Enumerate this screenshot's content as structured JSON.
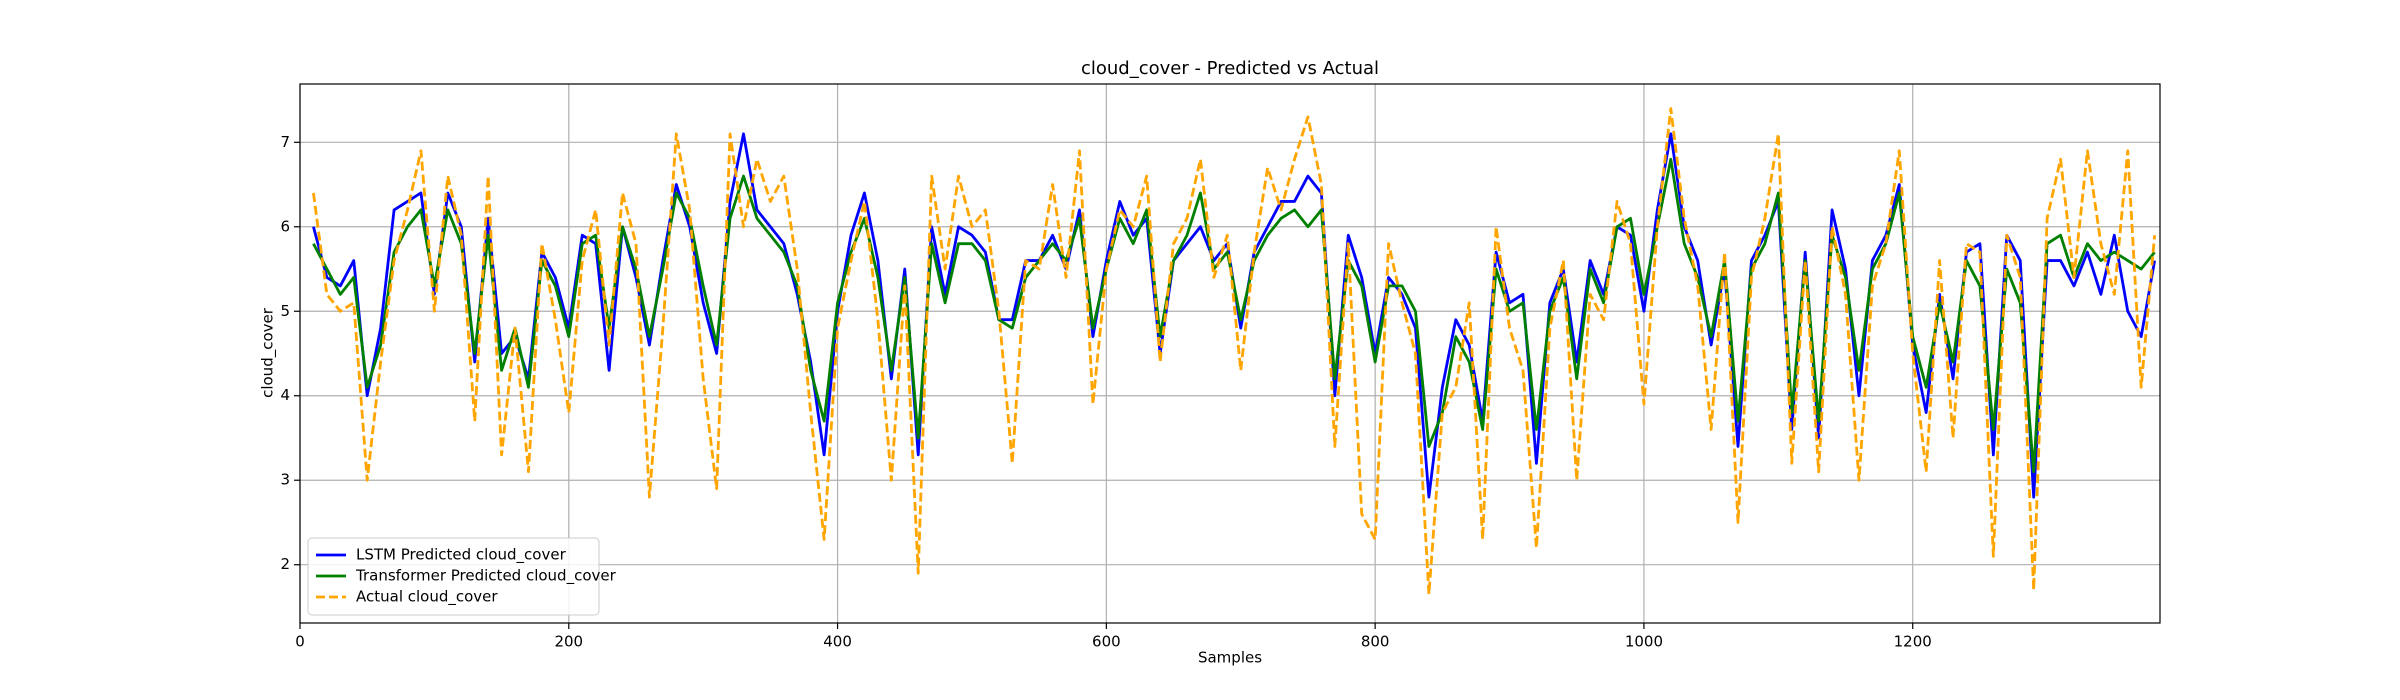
{
  "chart_data": {
    "type": "line",
    "title": "cloud_cover - Predicted vs Actual",
    "xlabel": "Samples",
    "ylabel": "cloud_cover",
    "xlim": [
      0,
      1384
    ],
    "ylim": [
      1.31,
      7.69
    ],
    "xticks": [
      0,
      200,
      400,
      600,
      800,
      1000,
      1200
    ],
    "yticks": [
      2,
      3,
      4,
      5,
      6,
      7
    ],
    "grid": true,
    "legend": "lower left",
    "x": [
      10,
      20,
      30,
      40,
      50,
      60,
      70,
      80,
      90,
      100,
      110,
      120,
      130,
      140,
      150,
      160,
      170,
      180,
      190,
      200,
      210,
      220,
      230,
      240,
      250,
      260,
      270,
      280,
      290,
      300,
      310,
      320,
      330,
      340,
      350,
      360,
      370,
      380,
      390,
      400,
      410,
      420,
      430,
      440,
      450,
      460,
      470,
      480,
      490,
      500,
      510,
      520,
      530,
      540,
      550,
      560,
      570,
      580,
      590,
      600,
      610,
      620,
      630,
      640,
      650,
      660,
      670,
      680,
      690,
      700,
      710,
      720,
      730,
      740,
      750,
      760,
      770,
      780,
      790,
      800,
      810,
      820,
      830,
      840,
      850,
      860,
      870,
      880,
      890,
      900,
      910,
      920,
      930,
      940,
      950,
      960,
      970,
      980,
      990,
      1000,
      1010,
      1020,
      1030,
      1040,
      1050,
      1060,
      1070,
      1080,
      1090,
      1100,
      1110,
      1120,
      1130,
      1140,
      1150,
      1160,
      1170,
      1180,
      1190,
      1200,
      1210,
      1220,
      1230,
      1240,
      1250,
      1260,
      1270,
      1280,
      1290,
      1300,
      1310,
      1320,
      1330,
      1340,
      1350,
      1360,
      1370,
      1380
    ],
    "series": [
      {
        "name": "LSTM Predicted cloud_cover",
        "color": "#0000ff",
        "linestyle": "solid",
        "values": [
          6.0,
          5.4,
          5.3,
          5.6,
          4.0,
          4.8,
          6.2,
          6.3,
          6.4,
          5.2,
          6.4,
          6.0,
          4.4,
          6.1,
          4.5,
          4.7,
          4.2,
          5.7,
          5.4,
          4.8,
          5.9,
          5.8,
          4.3,
          6.0,
          5.4,
          4.6,
          5.6,
          6.5,
          6.0,
          5.1,
          4.5,
          6.3,
          7.1,
          6.2,
          6.0,
          5.8,
          5.2,
          4.4,
          3.3,
          5.0,
          5.9,
          6.4,
          5.6,
          4.2,
          5.5,
          3.3,
          6.0,
          5.2,
          6.0,
          5.9,
          5.7,
          4.9,
          4.9,
          5.6,
          5.6,
          5.9,
          5.5,
          6.2,
          4.7,
          5.6,
          6.3,
          5.9,
          6.1,
          4.5,
          5.6,
          5.8,
          6.0,
          5.6,
          5.8,
          4.8,
          5.7,
          6.0,
          6.3,
          6.3,
          6.6,
          6.4,
          4.0,
          5.9,
          5.4,
          4.5,
          5.4,
          5.2,
          4.8,
          2.8,
          4.1,
          4.9,
          4.6,
          3.7,
          5.7,
          5.1,
          5.2,
          3.2,
          5.1,
          5.5,
          4.4,
          5.6,
          5.2,
          6.0,
          5.9,
          5.0,
          6.2,
          7.1,
          6.0,
          5.6,
          4.6,
          5.5,
          3.4,
          5.6,
          5.9,
          6.3,
          3.6,
          5.7,
          3.5,
          6.2,
          5.5,
          4.0,
          5.6,
          5.9,
          6.5,
          4.6,
          3.8,
          5.2,
          4.2,
          5.7,
          5.8,
          3.3,
          5.9,
          5.6,
          2.8,
          5.6,
          5.6,
          5.3,
          5.7,
          5.2,
          5.9,
          5.0,
          4.7,
          5.6
        ]
      },
      {
        "name": "Transformer Predicted cloud_cover",
        "color": "#008000",
        "linestyle": "solid",
        "values": [
          5.8,
          5.5,
          5.2,
          5.4,
          4.1,
          4.6,
          5.7,
          6.0,
          6.2,
          5.3,
          6.2,
          5.8,
          4.5,
          5.9,
          4.3,
          4.8,
          4.1,
          5.6,
          5.3,
          4.7,
          5.8,
          5.9,
          4.8,
          6.0,
          5.5,
          4.7,
          5.5,
          6.4,
          6.1,
          5.3,
          4.6,
          6.1,
          6.6,
          6.1,
          5.9,
          5.7,
          5.3,
          4.3,
          3.7,
          5.1,
          5.7,
          6.1,
          5.4,
          4.3,
          5.4,
          3.5,
          5.8,
          5.1,
          5.8,
          5.8,
          5.6,
          4.9,
          4.8,
          5.4,
          5.6,
          5.8,
          5.6,
          6.1,
          4.8,
          5.5,
          6.1,
          5.8,
          6.2,
          4.7,
          5.6,
          5.9,
          6.4,
          5.5,
          5.7,
          4.9,
          5.6,
          5.9,
          6.1,
          6.2,
          6.0,
          6.2,
          4.2,
          5.6,
          5.3,
          4.4,
          5.3,
          5.3,
          5.0,
          3.4,
          3.8,
          4.7,
          4.4,
          3.6,
          5.5,
          5.0,
          5.1,
          3.6,
          5.0,
          5.4,
          4.2,
          5.5,
          5.1,
          6.0,
          6.1,
          5.2,
          6.0,
          6.8,
          5.8,
          5.4,
          4.7,
          5.6,
          3.7,
          5.5,
          5.8,
          6.4,
          3.8,
          5.6,
          3.7,
          5.9,
          5.4,
          4.3,
          5.5,
          5.8,
          6.4,
          4.7,
          4.1,
          5.1,
          4.4,
          5.6,
          5.3,
          3.6,
          5.5,
          5.1,
          3.1,
          5.8,
          5.9,
          5.4,
          5.8,
          5.6,
          5.7,
          5.6,
          5.5,
          5.7
        ]
      },
      {
        "name": "Actual cloud_cover",
        "color": "#ffa500",
        "linestyle": "dashed",
        "values": [
          6.4,
          5.2,
          5.0,
          5.1,
          3.0,
          4.4,
          5.6,
          6.2,
          6.9,
          5.0,
          6.6,
          5.9,
          3.7,
          6.6,
          3.3,
          4.8,
          3.1,
          5.8,
          4.9,
          3.8,
          5.6,
          6.2,
          4.6,
          6.4,
          5.8,
          2.8,
          4.8,
          7.1,
          6.2,
          4.2,
          2.9,
          7.1,
          6.0,
          6.8,
          6.3,
          6.6,
          5.5,
          3.8,
          2.3,
          4.8,
          5.6,
          6.3,
          4.9,
          3.0,
          5.3,
          1.9,
          6.6,
          5.5,
          6.6,
          6.0,
          6.2,
          5.0,
          3.2,
          5.6,
          5.5,
          6.5,
          5.4,
          6.9,
          3.9,
          5.5,
          6.2,
          6.0,
          6.6,
          4.4,
          5.8,
          6.1,
          6.8,
          5.4,
          5.9,
          4.3,
          5.7,
          6.7,
          6.2,
          6.8,
          7.3,
          6.5,
          3.4,
          5.8,
          2.6,
          2.3,
          5.8,
          5.1,
          4.5,
          1.65,
          3.8,
          4.1,
          5.1,
          2.3,
          6.0,
          4.8,
          4.3,
          2.2,
          4.8,
          5.6,
          3.0,
          5.2,
          4.9,
          6.3,
          5.8,
          3.9,
          6.0,
          7.4,
          6.1,
          5.3,
          3.6,
          5.7,
          2.5,
          5.4,
          6.1,
          7.1,
          3.2,
          5.6,
          3.1,
          6.0,
          5.2,
          3.0,
          5.3,
          5.8,
          6.9,
          4.5,
          3.1,
          5.6,
          3.5,
          5.8,
          5.7,
          2.1,
          5.9,
          5.4,
          1.7,
          6.1,
          6.8,
          5.4,
          6.9,
          5.8,
          5.2,
          6.9,
          4.1,
          5.9
        ]
      }
    ]
  }
}
